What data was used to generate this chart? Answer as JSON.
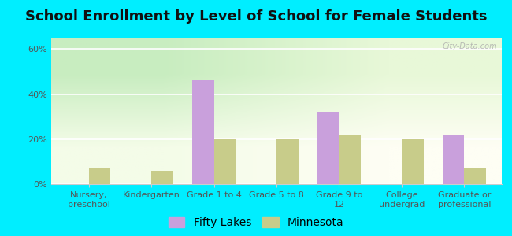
{
  "title": "School Enrollment by Level of School for Female Students",
  "categories": [
    "Nursery,\npreschool",
    "Kindergarten",
    "Grade 1 to 4",
    "Grade 5 to 8",
    "Grade 9 to\n12",
    "College\nundergrad",
    "Graduate or\nprofessional"
  ],
  "fifty_lakes": [
    0,
    0,
    46,
    0,
    32,
    0,
    22
  ],
  "minnesota": [
    7,
    6,
    20,
    20,
    22,
    20,
    7
  ],
  "fifty_lakes_color": "#c9a0dc",
  "minnesota_color": "#c8cc8a",
  "ylim": [
    0,
    65
  ],
  "yticks": [
    0,
    20,
    40,
    60
  ],
  "ytick_labels": [
    "0%",
    "20%",
    "40%",
    "60%"
  ],
  "background_color": "#00eeff",
  "title_fontsize": 13,
  "tick_fontsize": 8,
  "legend_fontsize": 10,
  "bar_width": 0.35,
  "watermark": "City-Data.com",
  "gradient_colors": [
    "#e8f5e2",
    "#f7fce8",
    "#fffff0"
  ],
  "grid_color": "#ffffff",
  "spine_color": "#cccccc"
}
